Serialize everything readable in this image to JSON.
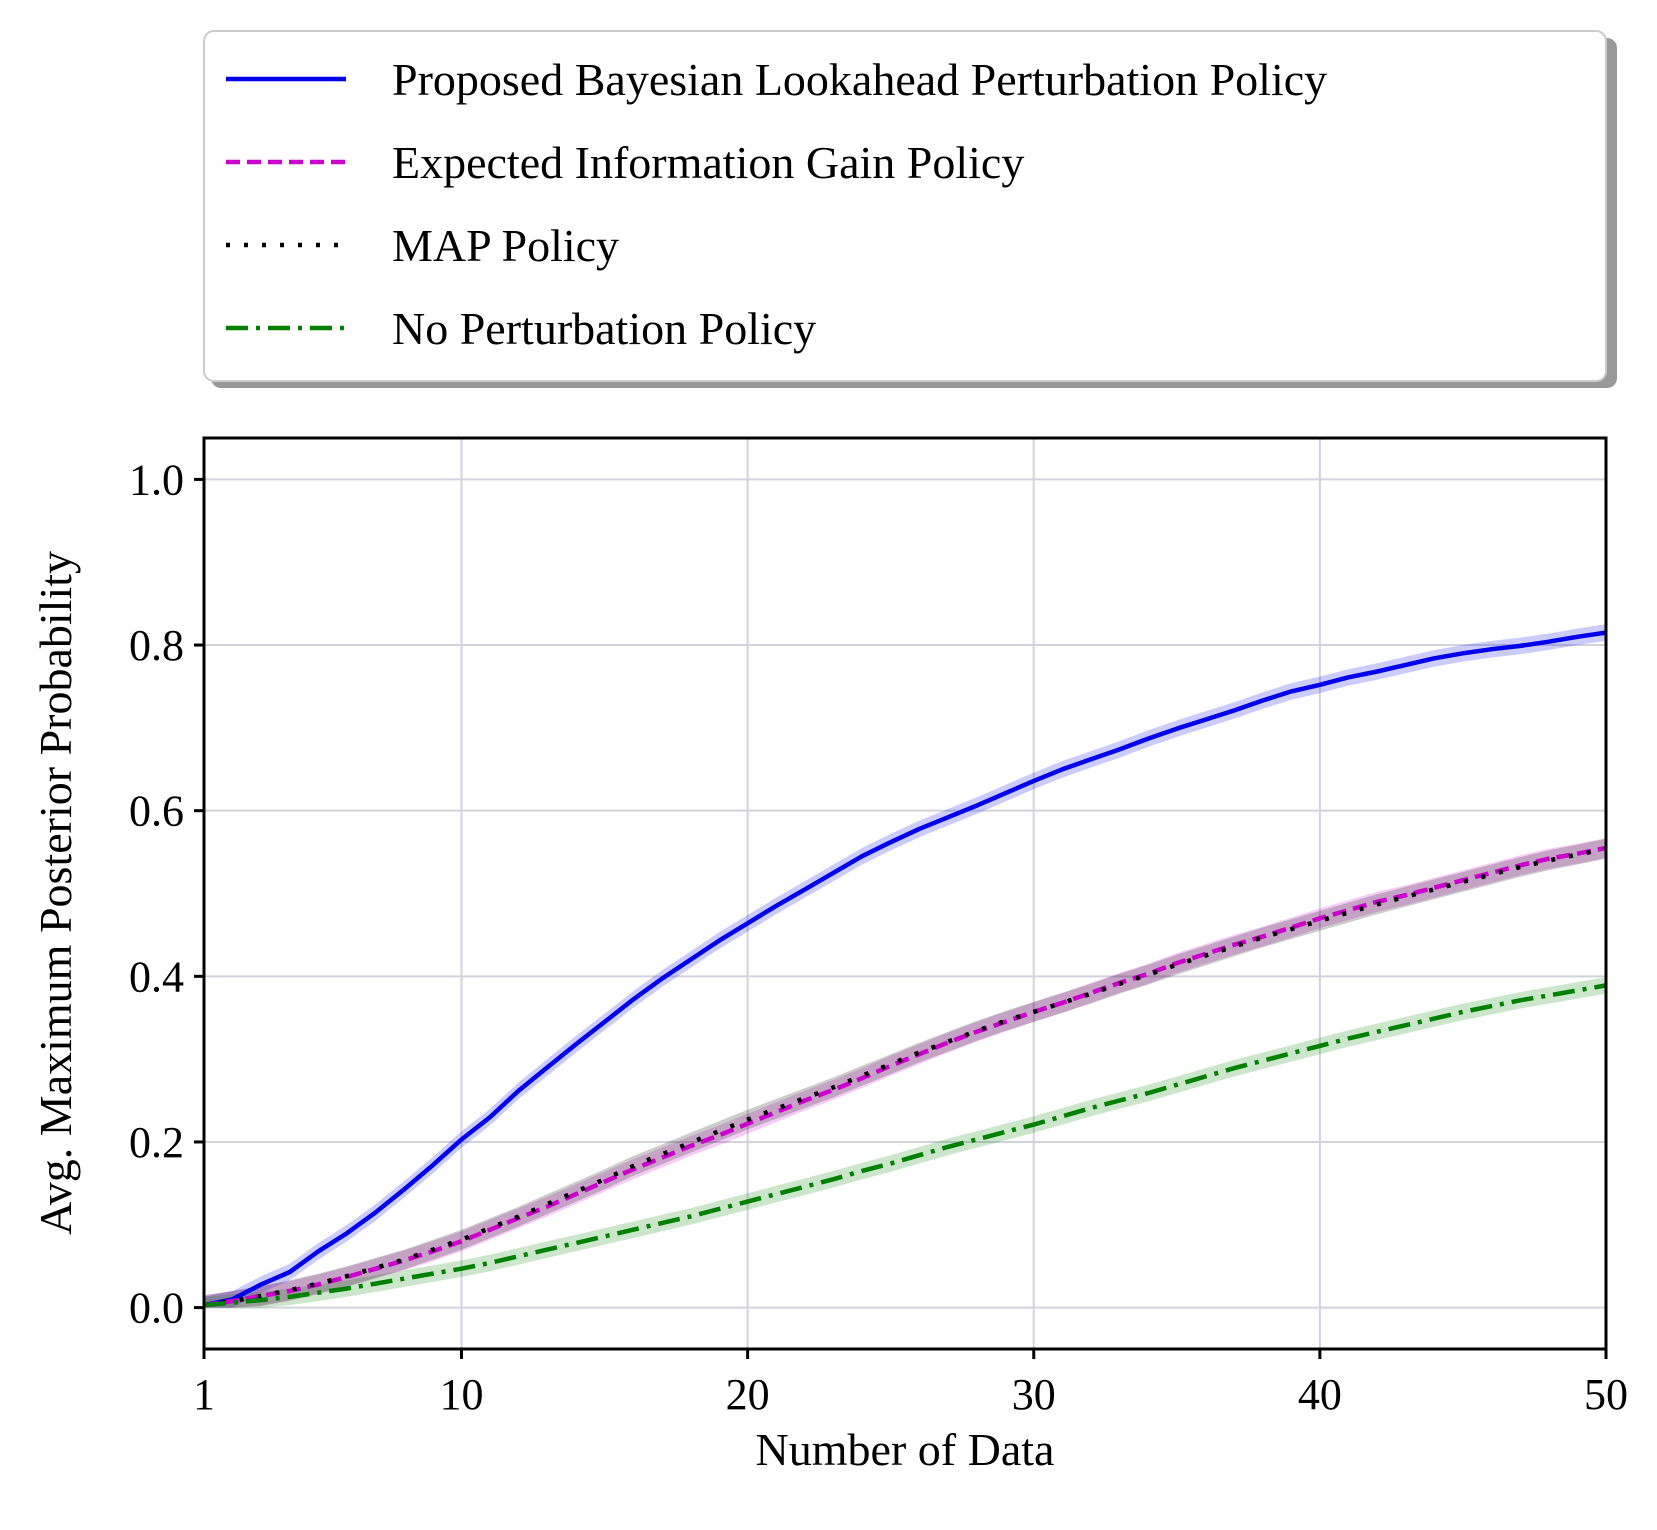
{
  "chart_data": {
    "type": "line",
    "xlabel": "Number of Data",
    "ylabel": "Avg. Maximum Posterior Probability",
    "xlim": [
      1,
      50
    ],
    "ylim": [
      -0.05,
      1.05
    ],
    "xticks": [
      1,
      10,
      20,
      30,
      40,
      50
    ],
    "yticks": [
      0.0,
      0.2,
      0.4,
      0.6,
      0.8,
      1.0
    ],
    "xtick_labels": [
      "1",
      "10",
      "20",
      "30",
      "40",
      "50"
    ],
    "ytick_labels": [
      "0.0",
      "0.2",
      "0.4",
      "0.6",
      "0.8",
      "1.0"
    ],
    "grid": true,
    "legend_position": "top, above plot",
    "x": [
      1,
      2,
      3,
      4,
      5,
      6,
      7,
      8,
      9,
      10,
      11,
      12,
      13,
      14,
      15,
      16,
      17,
      18,
      19,
      20,
      21,
      22,
      23,
      24,
      25,
      26,
      27,
      28,
      29,
      30,
      31,
      32,
      33,
      34,
      35,
      36,
      37,
      38,
      39,
      40,
      41,
      42,
      43,
      44,
      45,
      46,
      47,
      48,
      49,
      50
    ],
    "series": [
      {
        "name": "Proposed Bayesian Lookahead Perturbation Policy",
        "color": "#0000ee",
        "style": "solid",
        "band": 0.01,
        "values": [
          0.003,
          0.01,
          0.028,
          0.043,
          0.068,
          0.09,
          0.115,
          0.143,
          0.172,
          0.203,
          0.23,
          0.262,
          0.29,
          0.318,
          0.345,
          0.372,
          0.397,
          0.42,
          0.443,
          0.464,
          0.485,
          0.505,
          0.525,
          0.545,
          0.562,
          0.578,
          0.592,
          0.606,
          0.621,
          0.636,
          0.65,
          0.662,
          0.674,
          0.687,
          0.699,
          0.71,
          0.721,
          0.733,
          0.744,
          0.752,
          0.761,
          0.768,
          0.776,
          0.784,
          0.79,
          0.795,
          0.799,
          0.804,
          0.81,
          0.815
        ]
      },
      {
        "name": "Expected Information Gain Policy",
        "color": "#cc00cc",
        "style": "dashed",
        "band": 0.012,
        "values": [
          0.003,
          0.008,
          0.014,
          0.02,
          0.028,
          0.037,
          0.047,
          0.057,
          0.068,
          0.08,
          0.094,
          0.108,
          0.122,
          0.137,
          0.152,
          0.167,
          0.181,
          0.195,
          0.208,
          0.222,
          0.236,
          0.25,
          0.263,
          0.277,
          0.292,
          0.306,
          0.32,
          0.333,
          0.345,
          0.357,
          0.368,
          0.38,
          0.392,
          0.403,
          0.416,
          0.427,
          0.438,
          0.448,
          0.459,
          0.47,
          0.48,
          0.49,
          0.498,
          0.507,
          0.516,
          0.525,
          0.534,
          0.542,
          0.548,
          0.555
        ]
      },
      {
        "name": "MAP Policy",
        "color": "#000000",
        "style": "dotted",
        "band": 0.012,
        "values": [
          0.003,
          0.008,
          0.014,
          0.021,
          0.029,
          0.038,
          0.048,
          0.058,
          0.07,
          0.082,
          0.096,
          0.11,
          0.125,
          0.14,
          0.155,
          0.171,
          0.185,
          0.199,
          0.213,
          0.227,
          0.24,
          0.253,
          0.266,
          0.28,
          0.294,
          0.308,
          0.321,
          0.334,
          0.346,
          0.357,
          0.368,
          0.379,
          0.391,
          0.402,
          0.414,
          0.425,
          0.436,
          0.447,
          0.457,
          0.467,
          0.477,
          0.487,
          0.496,
          0.505,
          0.514,
          0.523,
          0.532,
          0.54,
          0.547,
          0.554
        ]
      },
      {
        "name": "No Perturbation Policy",
        "color": "#008000",
        "style": "dashdot",
        "band": 0.01,
        "values": [
          0.003,
          0.006,
          0.009,
          0.013,
          0.018,
          0.023,
          0.029,
          0.035,
          0.041,
          0.047,
          0.054,
          0.062,
          0.07,
          0.078,
          0.086,
          0.094,
          0.102,
          0.11,
          0.119,
          0.128,
          0.137,
          0.146,
          0.155,
          0.165,
          0.174,
          0.184,
          0.194,
          0.203,
          0.212,
          0.221,
          0.231,
          0.241,
          0.25,
          0.259,
          0.269,
          0.279,
          0.289,
          0.298,
          0.307,
          0.316,
          0.325,
          0.333,
          0.341,
          0.349,
          0.357,
          0.364,
          0.371,
          0.377,
          0.383,
          0.389
        ]
      }
    ]
  }
}
